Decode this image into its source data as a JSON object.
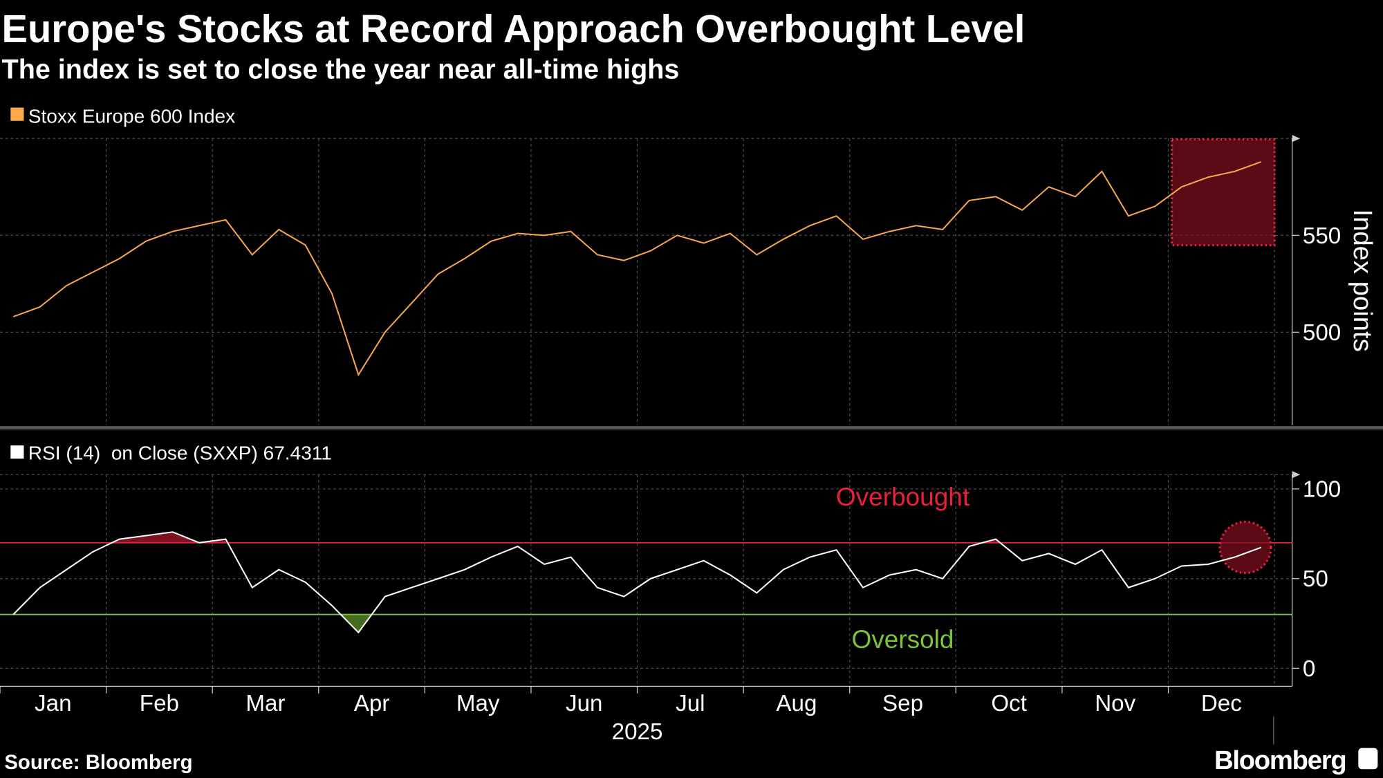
{
  "chart_data": [
    {
      "type": "line",
      "title": "Europe's Stocks at Record Approach Overbought Level",
      "subtitle": "The index is set to close the year near all-time highs",
      "y_label": "Index points",
      "ylim": [
        452,
        600
      ],
      "yticks": [
        500,
        550
      ],
      "series": [
        {
          "name": "Stoxx Europe 600 Index",
          "color": "#f7a64b",
          "values": [
            508,
            513,
            524,
            531,
            538,
            547,
            552,
            555,
            558,
            540,
            553,
            545,
            520,
            478,
            500,
            515,
            530,
            538,
            547,
            551,
            550,
            552,
            540,
            537,
            542,
            550,
            546,
            551,
            540,
            548,
            555,
            560,
            548,
            552,
            555,
            553,
            568,
            570,
            563,
            575,
            570,
            583,
            560,
            565,
            575,
            580,
            583,
            588
          ]
        }
      ]
    },
    {
      "type": "line",
      "ylim": [
        -10,
        108
      ],
      "yticks": [
        0,
        50,
        100
      ],
      "x_labels": [
        "Jan",
        "Feb",
        "Mar",
        "Apr",
        "May",
        "Jun",
        "Jul",
        "Aug",
        "Sep",
        "Oct",
        "Nov",
        "Dec"
      ],
      "x_label": "2025",
      "levels": [
        {
          "label": "Overbought",
          "value": 70,
          "color": "#e8203a"
        },
        {
          "label": "Oversold",
          "value": 30,
          "color": "#7cc437"
        }
      ],
      "series": [
        {
          "name": "RSI (14)  on Close (SXXP) 67.4311",
          "color": "#ffffff",
          "values": [
            30,
            45,
            55,
            65,
            72,
            74,
            76,
            70,
            72,
            45,
            55,
            48,
            35,
            20,
            40,
            45,
            50,
            55,
            62,
            68,
            58,
            62,
            45,
            40,
            50,
            55,
            60,
            52,
            42,
            55,
            62,
            66,
            45,
            52,
            55,
            50,
            68,
            72,
            60,
            64,
            58,
            66,
            45,
            50,
            57,
            58,
            62,
            67.4
          ]
        }
      ]
    }
  ],
  "source": "Source: Bloomberg",
  "logo": "Bloomberg"
}
